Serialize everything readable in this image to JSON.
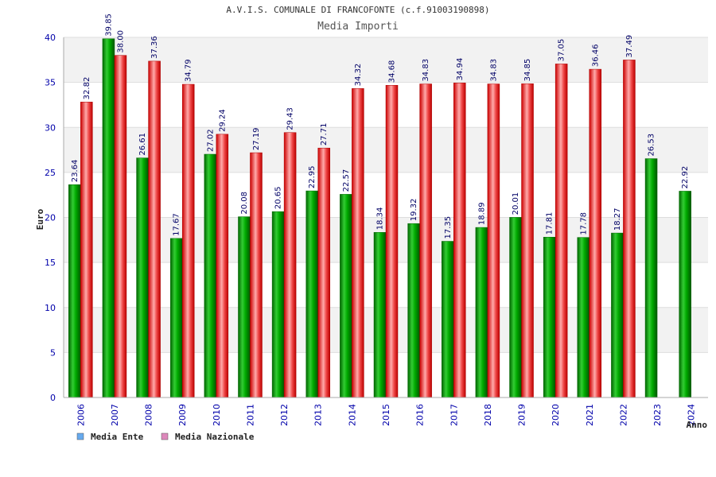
{
  "chart_data": {
    "type": "bar",
    "title": "A.V.I.S. COMUNALE DI FRANCOFONTE (c.f.91003190898)",
    "subtitle": "Media Importi",
    "xlabel": "Anno",
    "ylabel": "Euro",
    "ylim": [
      0,
      40
    ],
    "yticks": [
      "0",
      "5",
      "10",
      "15",
      "20",
      "25",
      "30",
      "35",
      "40"
    ],
    "categories": [
      "2006",
      "2007",
      "2008",
      "2009",
      "2010",
      "2011",
      "2012",
      "2013",
      "2014",
      "2015",
      "2016",
      "2017",
      "2018",
      "2019",
      "2020",
      "2021",
      "2022",
      "2023",
      "2024"
    ],
    "series": [
      {
        "name": "Media Ente",
        "values": [
          23.64,
          39.85,
          26.61,
          17.67,
          27.02,
          20.08,
          20.65,
          22.95,
          22.57,
          18.34,
          19.32,
          17.35,
          18.89,
          20.01,
          17.81,
          17.78,
          18.27,
          26.53,
          22.92
        ],
        "labels": [
          "23.64",
          "39.85",
          "26.61",
          "17.67",
          "27.02",
          "20.08",
          "20.65",
          "22.95",
          "22.57",
          "18.34",
          "19.32",
          "17.35",
          "18.89",
          "20.01",
          "17.81",
          "17.78",
          "18.27",
          "26.53",
          "22.92"
        ],
        "color": "#00aa00",
        "legend_color": "#66aaee"
      },
      {
        "name": "Media Nazionale",
        "values": [
          32.82,
          38.0,
          37.36,
          34.79,
          29.24,
          27.19,
          29.43,
          27.71,
          34.32,
          34.68,
          34.83,
          34.94,
          34.83,
          34.85,
          37.05,
          36.46,
          37.49,
          null,
          null
        ],
        "labels": [
          "32.82",
          "38.00",
          "37.36",
          "34.79",
          "29.24",
          "27.19",
          "29.43",
          "27.71",
          "34.32",
          "34.68",
          "34.83",
          "34.94",
          "34.83",
          "34.85",
          "37.05",
          "36.46",
          "37.49",
          null,
          null
        ],
        "color": "#ee2222",
        "legend_color": "#dd88bb"
      }
    ],
    "grid": true,
    "legend": "bottom-left"
  },
  "colors": {
    "band_light": "#f2f2f2",
    "band_white": "#ffffff",
    "tick_color": "#0000aa"
  }
}
